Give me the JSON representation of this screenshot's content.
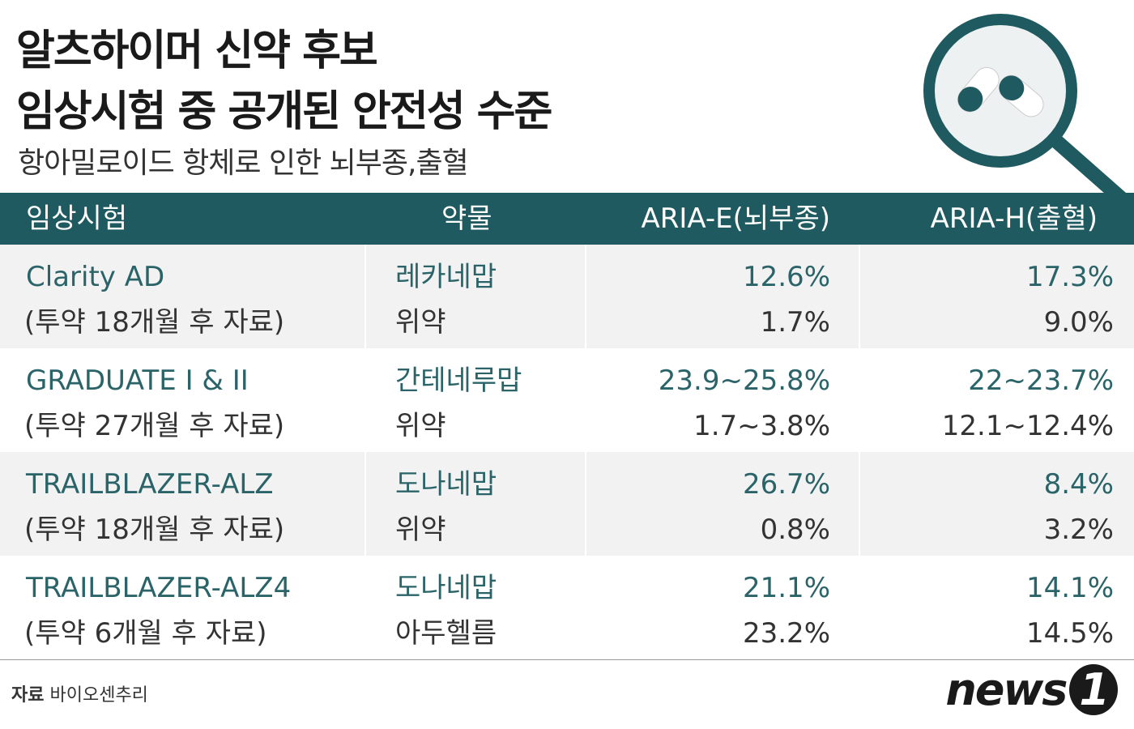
{
  "header": {
    "title": [
      "알츠하이머 신약 후보",
      "임상시험 중 공개된 안전성 수준"
    ],
    "subtitle": "항아밀로이드 항체로 인한 뇌부종,출혈"
  },
  "table": {
    "columns": [
      "임상시험",
      "약물",
      "ARIA-E(뇌부종)",
      "ARIA-H(출혈)"
    ],
    "rows": [
      {
        "trial": "Clarity AD",
        "note": "(투약 18개월 후 자료)",
        "drugs": [
          "레카네맙",
          "위약"
        ],
        "aria_e": [
          "12.6%",
          "1.7%"
        ],
        "aria_h": [
          "17.3%",
          "9.0%"
        ]
      },
      {
        "trial": "GRADUATE I & II",
        "note": "(투약 27개월 후 자료)",
        "drugs": [
          "간테네루맙",
          "위약"
        ],
        "aria_e": [
          "23.9~25.8%",
          "1.7~3.8%"
        ],
        "aria_h": [
          "22~23.7%",
          "12.1~12.4%"
        ]
      },
      {
        "trial": "TRAILBLAZER-ALZ",
        "note": "(투약 18개월 후 자료)",
        "drugs": [
          "도나네맙",
          "위약"
        ],
        "aria_e": [
          "26.7%",
          "0.8%"
        ],
        "aria_h": [
          "8.4%",
          "3.2%"
        ]
      },
      {
        "trial": "TRAILBLAZER-ALZ4",
        "note": "(투약 6개월 후 자료)",
        "drugs": [
          "도나네맙",
          "아두헬름"
        ],
        "aria_e": [
          "21.1%",
          "23.2%"
        ],
        "aria_h": [
          "14.1%",
          "14.5%"
        ]
      }
    ]
  },
  "footer": {
    "source_label": "자료",
    "source": "바이오센추리",
    "logo": [
      "news",
      "1"
    ]
  }
}
